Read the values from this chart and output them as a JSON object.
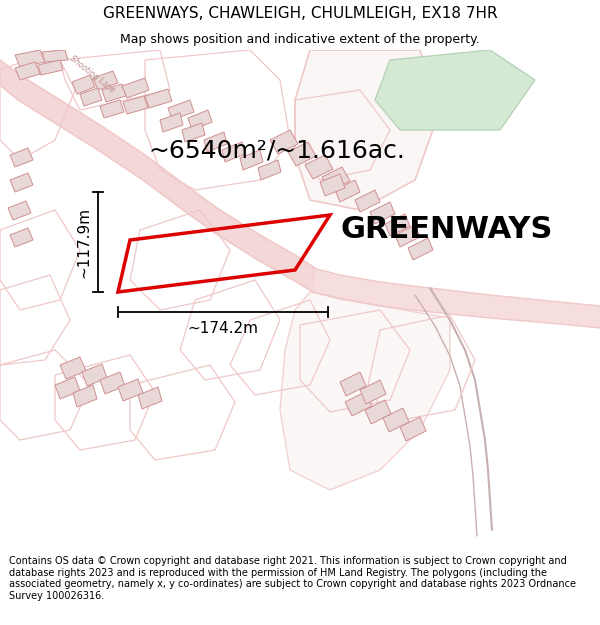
{
  "title": "GREENWAYS, CHAWLEIGH, CHULMLEIGH, EX18 7HR",
  "subtitle": "Map shows position and indicative extent of the property.",
  "footer": "Contains OS data © Crown copyright and database right 2021. This information is subject to Crown copyright and database rights 2023 and is reproduced with the permission of HM Land Registry. The polygons (including the associated geometry, namely x, y co-ordinates) are subject to Crown copyright and database rights 2023 Ordnance Survey 100026316.",
  "area_label": "~6540m²/~1.616ac.",
  "property_name": "GREENWAYS",
  "dim_width": "~174.2m",
  "dim_height": "~117.9m",
  "bg_color": "#ffffff",
  "map_bg": "#faf6f6",
  "road_color": "#f0c8c8",
  "highlight_color": "#dd0000",
  "green_color": "#d4e8d4",
  "green_edge": "#b8d4b8",
  "building_fc": "#e8d8d8",
  "building_ec": "#d09090",
  "title_fontsize": 11,
  "subtitle_fontsize": 9,
  "footer_fontsize": 7,
  "area_fontsize": 18,
  "property_fontsize": 22,
  "dim_fontsize": 11
}
